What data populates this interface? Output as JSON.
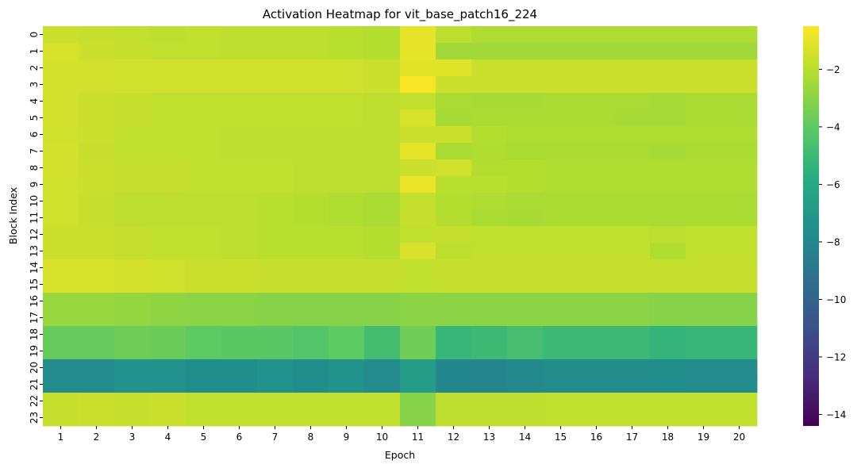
{
  "chart_data": {
    "type": "heatmap",
    "title": "Activation Heatmap for vit_base_patch16_224",
    "xlabel": "Epoch",
    "ylabel": "Block Index",
    "x": [
      "1",
      "2",
      "3",
      "4",
      "5",
      "6",
      "7",
      "8",
      "9",
      "10",
      "11",
      "12",
      "13",
      "14",
      "15",
      "16",
      "17",
      "18",
      "19",
      "20"
    ],
    "y": [
      "0",
      "1",
      "2",
      "3",
      "4",
      "5",
      "6",
      "7",
      "8",
      "9",
      "10",
      "11",
      "12",
      "13",
      "14",
      "15",
      "16",
      "17",
      "18",
      "19",
      "20",
      "21",
      "22",
      "23"
    ],
    "colormap": "viridis",
    "vmin": -14.4,
    "vmax": -0.5,
    "colorbar_ticks": [
      -2,
      -4,
      -6,
      -8,
      -10,
      -12,
      -14
    ],
    "colorbar_tick_labels": [
      "−2",
      "−4",
      "−6",
      "−8",
      "−10",
      "−12",
      "−14"
    ],
    "values": [
      [
        -1.6,
        -1.7,
        -1.8,
        -1.9,
        -1.8,
        -1.9,
        -1.9,
        -1.9,
        -2.0,
        -2.1,
        -1.0,
        -1.9,
        -2.2,
        -2.2,
        -2.2,
        -2.2,
        -2.2,
        -2.2,
        -2.2,
        -2.2
      ],
      [
        -1.3,
        -1.6,
        -1.7,
        -1.8,
        -1.8,
        -1.9,
        -1.9,
        -1.9,
        -2.0,
        -2.1,
        -1.0,
        -2.5,
        -2.5,
        -2.5,
        -2.5,
        -2.5,
        -2.5,
        -2.5,
        -2.5,
        -2.5
      ],
      [
        -1.4,
        -1.4,
        -1.5,
        -1.5,
        -1.5,
        -1.5,
        -1.5,
        -1.5,
        -1.5,
        -1.6,
        -1.1,
        -1.1,
        -1.6,
        -1.6,
        -1.6,
        -1.6,
        -1.6,
        -1.6,
        -1.6,
        -1.6
      ],
      [
        -1.4,
        -1.4,
        -1.5,
        -1.5,
        -1.5,
        -1.5,
        -1.5,
        -1.5,
        -1.5,
        -1.6,
        -0.6,
        -1.6,
        -1.6,
        -1.6,
        -1.6,
        -1.6,
        -1.6,
        -1.6,
        -1.6,
        -1.6
      ],
      [
        -1.4,
        -1.6,
        -1.7,
        -1.8,
        -1.8,
        -1.8,
        -1.8,
        -1.8,
        -1.8,
        -1.9,
        -1.8,
        -2.3,
        -2.4,
        -2.4,
        -2.3,
        -2.3,
        -2.3,
        -2.4,
        -2.3,
        -2.3
      ],
      [
        -1.4,
        -1.6,
        -1.7,
        -1.8,
        -1.8,
        -1.8,
        -1.8,
        -1.8,
        -1.8,
        -1.9,
        -1.3,
        -2.4,
        -2.3,
        -2.3,
        -2.3,
        -2.3,
        -2.4,
        -2.4,
        -2.3,
        -2.3
      ],
      [
        -1.5,
        -1.6,
        -1.8,
        -1.8,
        -1.8,
        -1.9,
        -1.9,
        -1.9,
        -1.9,
        -1.9,
        -1.6,
        -1.6,
        -2.1,
        -2.2,
        -2.2,
        -2.2,
        -2.2,
        -2.2,
        -2.2,
        -2.2
      ],
      [
        -1.4,
        -1.7,
        -1.8,
        -1.8,
        -1.8,
        -1.9,
        -1.9,
        -1.9,
        -1.9,
        -1.9,
        -1.0,
        -2.3,
        -2.2,
        -2.3,
        -2.3,
        -2.3,
        -2.3,
        -2.4,
        -2.3,
        -2.3
      ],
      [
        -1.4,
        -1.6,
        -1.7,
        -1.7,
        -1.8,
        -1.8,
        -1.8,
        -1.9,
        -1.9,
        -1.9,
        -1.6,
        -1.5,
        -2.1,
        -2.1,
        -2.2,
        -2.2,
        -2.2,
        -2.2,
        -2.2,
        -2.2
      ],
      [
        -1.5,
        -1.6,
        -1.7,
        -1.7,
        -1.8,
        -1.8,
        -1.8,
        -1.9,
        -1.9,
        -1.9,
        -0.9,
        -2.0,
        -2.0,
        -2.1,
        -2.2,
        -2.2,
        -2.2,
        -2.2,
        -2.2,
        -2.2
      ],
      [
        -1.5,
        -1.7,
        -1.9,
        -1.9,
        -1.9,
        -1.9,
        -2.0,
        -2.1,
        -2.2,
        -2.3,
        -1.8,
        -2.1,
        -2.2,
        -2.3,
        -2.3,
        -2.3,
        -2.3,
        -2.3,
        -2.3,
        -2.3
      ],
      [
        -1.5,
        -1.7,
        -1.9,
        -1.9,
        -1.9,
        -1.9,
        -2.0,
        -2.1,
        -2.2,
        -2.3,
        -1.7,
        -2.1,
        -2.3,
        -2.4,
        -2.3,
        -2.3,
        -2.3,
        -2.3,
        -2.3,
        -2.3
      ],
      [
        -1.6,
        -1.6,
        -1.7,
        -1.8,
        -1.8,
        -1.9,
        -2.0,
        -2.0,
        -2.0,
        -2.1,
        -1.8,
        -1.7,
        -1.8,
        -1.8,
        -1.8,
        -1.8,
        -1.8,
        -1.9,
        -1.8,
        -1.8
      ],
      [
        -1.6,
        -1.6,
        -1.7,
        -1.8,
        -1.8,
        -1.9,
        -2.0,
        -2.0,
        -2.0,
        -2.1,
        -1.3,
        -1.9,
        -1.8,
        -1.8,
        -1.8,
        -1.8,
        -1.8,
        -2.2,
        -1.8,
        -1.8
      ],
      [
        -1.3,
        -1.3,
        -1.4,
        -1.5,
        -1.6,
        -1.6,
        -1.7,
        -1.7,
        -1.7,
        -1.7,
        -1.8,
        -1.7,
        -1.7,
        -1.7,
        -1.7,
        -1.7,
        -1.7,
        -1.7,
        -1.7,
        -1.7
      ],
      [
        -1.3,
        -1.3,
        -1.4,
        -1.5,
        -1.6,
        -1.6,
        -1.7,
        -1.7,
        -1.7,
        -1.7,
        -1.8,
        -1.7,
        -1.7,
        -1.7,
        -1.7,
        -1.7,
        -1.7,
        -1.7,
        -1.7,
        -1.7
      ],
      [
        -2.7,
        -2.7,
        -2.8,
        -2.9,
        -3.0,
        -3.0,
        -3.1,
        -3.1,
        -3.1,
        -3.1,
        -3.0,
        -3.0,
        -3.0,
        -3.0,
        -3.0,
        -3.0,
        -3.0,
        -3.1,
        -3.1,
        -3.1
      ],
      [
        -2.7,
        -2.7,
        -2.8,
        -2.9,
        -3.0,
        -3.0,
        -3.1,
        -3.1,
        -3.1,
        -3.1,
        -3.0,
        -3.0,
        -3.0,
        -3.0,
        -3.0,
        -3.0,
        -3.0,
        -3.1,
        -3.1,
        -3.1
      ],
      [
        -3.8,
        -3.8,
        -3.6,
        -3.7,
        -4.0,
        -4.1,
        -4.1,
        -4.3,
        -4.0,
        -4.8,
        -3.6,
        -5.2,
        -5.0,
        -4.7,
        -5.0,
        -5.0,
        -5.0,
        -5.3,
        -5.2,
        -5.2
      ],
      [
        -3.8,
        -3.8,
        -3.6,
        -3.7,
        -4.0,
        -4.1,
        -4.1,
        -4.3,
        -4.0,
        -4.8,
        -3.6,
        -5.2,
        -5.0,
        -4.7,
        -5.0,
        -5.0,
        -5.0,
        -5.3,
        -5.2,
        -5.2
      ],
      [
        -7.8,
        -7.8,
        -7.4,
        -7.4,
        -7.6,
        -7.6,
        -7.4,
        -7.6,
        -7.3,
        -7.8,
        -6.8,
        -8.0,
        -8.1,
        -7.9,
        -7.7,
        -7.7,
        -7.7,
        -7.6,
        -7.8,
        -7.8
      ],
      [
        -7.8,
        -7.8,
        -7.4,
        -7.4,
        -7.6,
        -7.6,
        -7.4,
        -7.6,
        -7.3,
        -7.8,
        -6.8,
        -8.0,
        -8.1,
        -7.9,
        -7.7,
        -7.7,
        -7.7,
        -7.6,
        -7.8,
        -7.8
      ],
      [
        -1.7,
        -1.6,
        -1.7,
        -1.6,
        -1.8,
        -1.8,
        -1.8,
        -1.8,
        -1.8,
        -1.8,
        -3.1,
        -1.9,
        -1.9,
        -1.9,
        -1.8,
        -1.8,
        -1.8,
        -1.8,
        -1.8,
        -1.8
      ],
      [
        -1.7,
        -1.6,
        -1.7,
        -1.6,
        -1.8,
        -1.8,
        -1.8,
        -1.8,
        -1.8,
        -1.8,
        -3.1,
        -1.9,
        -1.9,
        -1.9,
        -1.8,
        -1.8,
        -1.8,
        -1.8,
        -1.8,
        -1.8
      ]
    ]
  }
}
